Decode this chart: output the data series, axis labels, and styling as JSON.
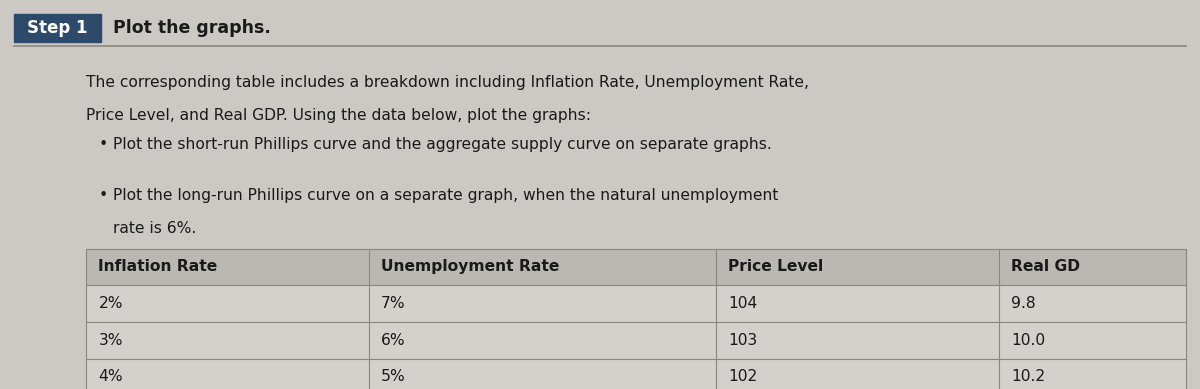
{
  "step_label": "Step 1",
  "step_title": "Plot the graphs.",
  "paragraph_line1": "The corresponding table includes a breakdown including Inflation Rate, Unemployment Rate,",
  "paragraph_line2": "Price Level, and Real GDP. Using the data below, plot the graphs:",
  "bullet1": "Plot the short-run Phillips curve and the aggregate supply curve on separate graphs.",
  "bullet2_line1": "Plot the long-run Phillips curve on a separate graph, when the natural unemployment",
  "bullet2_line2": "rate is 6%.",
  "table_headers": [
    "Inflation Rate",
    "Unemployment Rate",
    "Price Level",
    "Real GD"
  ],
  "table_rows": [
    [
      "2%",
      "7%",
      "104",
      "9.8"
    ],
    [
      "3%",
      "6%",
      "103",
      "10.0"
    ],
    [
      "4%",
      "5%",
      "102",
      "10.2"
    ]
  ],
  "bg_color": "#ccc8c4",
  "step_box_color": "#2e4a6b",
  "step_text_color": "#ffffff",
  "header_row_bg": "#bbb8b4",
  "data_row_bg": "#d4d0cc",
  "table_border_color": "#888880",
  "hr_color": "#888880",
  "text_color": "#1a1a1a",
  "title_font_size": 12.5,
  "body_font_size": 11.2,
  "table_font_size": 11.2
}
